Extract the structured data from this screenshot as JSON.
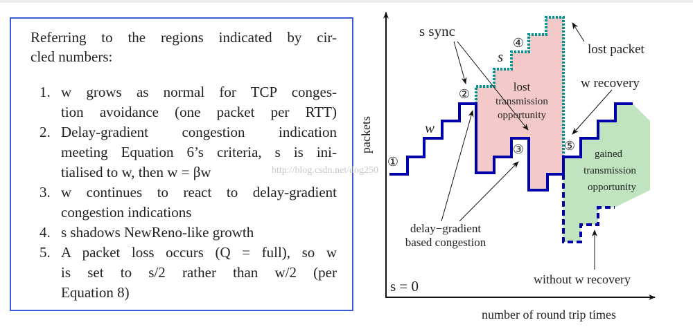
{
  "text_box": {
    "intro": [
      "Referring to the regions indicated by cir-",
      "cled numbers:"
    ],
    "items": [
      {
        "number": "1.",
        "lines": [
          "w grows as normal for TCP conges-",
          "tion avoidance (one packet per RTT)"
        ]
      },
      {
        "number": "2.",
        "lines": [
          "Delay-gradient congestion indication",
          "meeting Equation 6’s criteria, s is ini-",
          "tialised to w, then w = βw"
        ]
      },
      {
        "number": "3.",
        "lines": [
          "w continues to react to delay-gradient",
          "congestion indications"
        ]
      },
      {
        "number": "4.",
        "lines": [
          "s shadows NewReno-like growth"
        ]
      },
      {
        "number": "5.",
        "lines": [
          "A packet loss occurs (Q = full), so w",
          "is set to s/2 rather than w/2 (per",
          "Equation 8)"
        ]
      }
    ],
    "border_color": "#3b5bd6"
  },
  "diagram": {
    "y_axis_label": "packets",
    "x_axis_label": "number of round trip times",
    "s_sync": "s sync",
    "w_label": "w",
    "s_label": "s",
    "lost_packet": "lost packet",
    "w_recovery": "w recovery",
    "lost_region": [
      "lost",
      "transmission",
      "opportunity"
    ],
    "gained_region": [
      "gained",
      "transmission",
      "opportunity"
    ],
    "delay_gradient": [
      "delay−gradient",
      "based congestion"
    ],
    "without_w_recovery": "without w recovery",
    "s_zero": "s = 0",
    "circled": [
      "①",
      "②",
      "③",
      "④",
      "⑤"
    ],
    "watermark": "http://blog.csdn.net/dog250",
    "colors": {
      "w_line": "#0000a8",
      "s_line": "#009490",
      "lost_fill": "#f4c9c9",
      "gained_fill": "#c0e4c0"
    }
  }
}
